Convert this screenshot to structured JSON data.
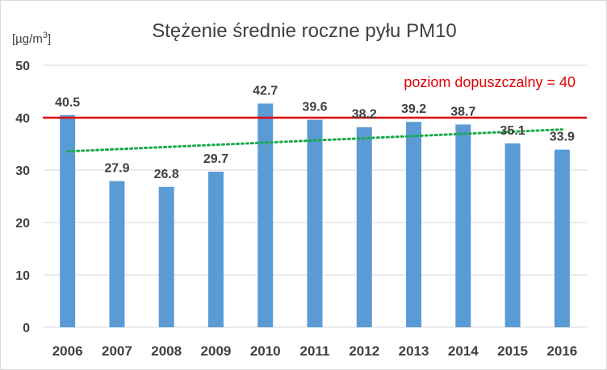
{
  "chart_data": {
    "type": "bar",
    "title": "Stężenie średnie roczne pyłu PM10",
    "ylabel": "[µg/m3]",
    "ylabel_base": "[µg/m",
    "ylabel_sup": "3",
    "ylabel_close": "]",
    "xlabel": "",
    "ylim": [
      0,
      50
    ],
    "yticks": [
      "0",
      "10",
      "20",
      "30",
      "40",
      "50"
    ],
    "ytick_values": [
      0,
      10,
      20,
      30,
      40,
      50
    ],
    "grid": true,
    "categories": [
      "2006",
      "2007",
      "2008",
      "2009",
      "2010",
      "2011",
      "2012",
      "2013",
      "2014",
      "2015",
      "2016"
    ],
    "values": [
      40.5,
      27.9,
      26.8,
      29.7,
      42.7,
      39.6,
      38.2,
      39.2,
      38.7,
      35.1,
      33.9
    ],
    "value_labels": [
      "40.5",
      "27.9",
      "26.8",
      "29.7",
      "42.7",
      "39.6",
      "38.2",
      "39.2",
      "38.7",
      "35.1",
      "33.9"
    ],
    "limit": {
      "value": 40,
      "label": "poziom dopuszczalny = 40"
    },
    "trendline": {
      "type": "linear",
      "style": "dotted"
    },
    "colors": {
      "bar": "#5b9bd5",
      "limit": "#e00000",
      "trend": "#1aaa4a",
      "grid": "#d9d9d9",
      "text": "#404040"
    }
  }
}
